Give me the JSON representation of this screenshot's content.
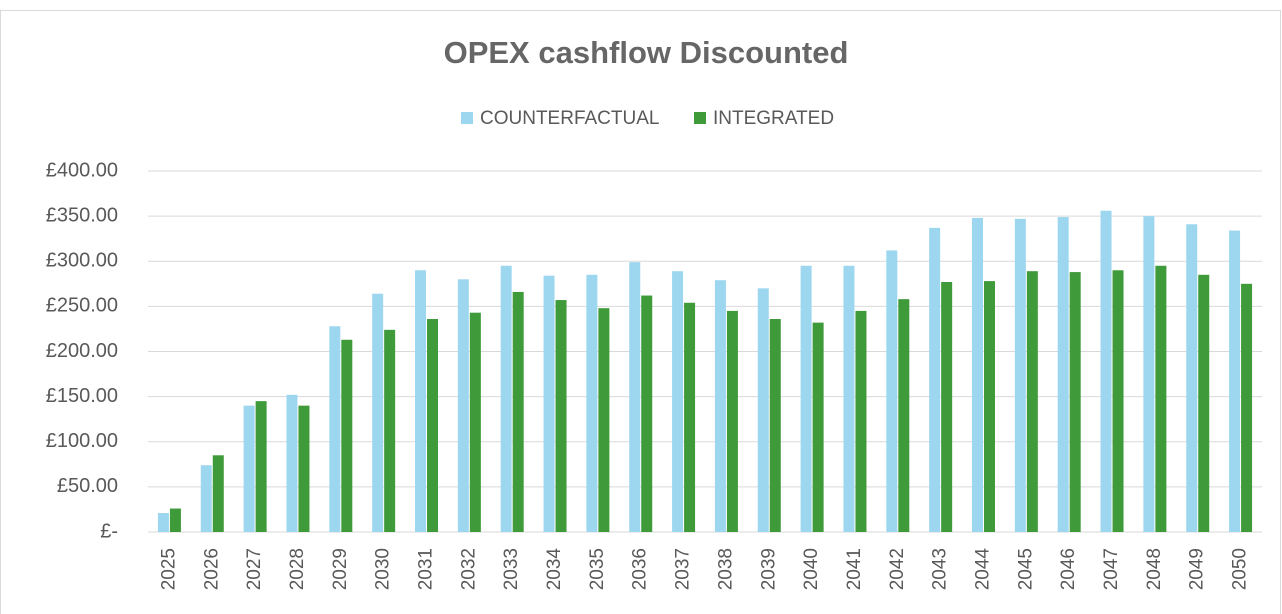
{
  "chart_data": {
    "type": "bar",
    "title": "OPEX cashflow Discounted",
    "categories": [
      "2025",
      "2026",
      "2027",
      "2028",
      "2029",
      "2030",
      "2031",
      "2032",
      "2033",
      "2034",
      "2035",
      "2036",
      "2037",
      "2038",
      "2039",
      "2040",
      "2041",
      "2042",
      "2043",
      "2044",
      "2045",
      "2046",
      "2047",
      "2048",
      "2049",
      "2050"
    ],
    "series": [
      {
        "name": "COUNTERFACTUAL",
        "color": "#9dd7ef",
        "values": [
          21,
          74,
          140,
          152,
          228,
          264,
          290,
          280,
          295,
          284,
          285,
          299,
          289,
          279,
          270,
          295,
          295,
          312,
          337,
          348,
          347,
          349,
          356,
          350,
          341,
          334
        ]
      },
      {
        "name": "INTEGRATED",
        "color": "#3f9a3a",
        "values": [
          26,
          85,
          145,
          140,
          213,
          224,
          236,
          243,
          266,
          257,
          248,
          262,
          254,
          245,
          236,
          232,
          245,
          258,
          277,
          278,
          289,
          288,
          290,
          295,
          285,
          275
        ]
      }
    ],
    "ylim": [
      0,
      400
    ],
    "yticks": [
      {
        "value": 0,
        "label": "£-"
      },
      {
        "value": 50,
        "label": "£50.00"
      },
      {
        "value": 100,
        "label": "£100.00"
      },
      {
        "value": 150,
        "label": "£150.00"
      },
      {
        "value": 200,
        "label": "£200.00"
      },
      {
        "value": 250,
        "label": "£250.00"
      },
      {
        "value": 300,
        "label": "£300.00"
      },
      {
        "value": 350,
        "label": "£350.00"
      },
      {
        "value": 400,
        "label": "£400.00"
      }
    ],
    "grid": true,
    "legend": "top"
  }
}
